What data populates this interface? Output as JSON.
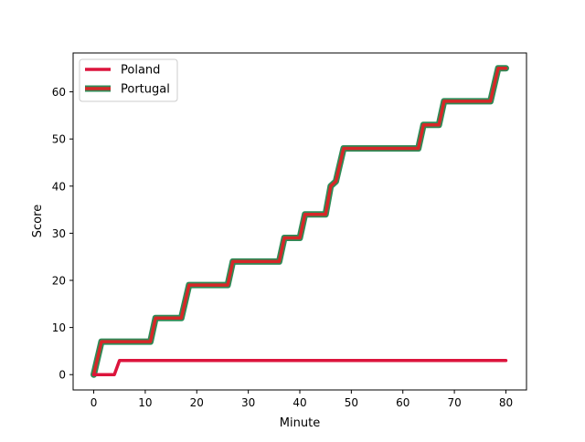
{
  "chart_data": {
    "type": "line",
    "title": "",
    "xlabel": "Minute",
    "ylabel": "Score",
    "xlim": [
      -4,
      84
    ],
    "ylim": [
      -3.25,
      68.25
    ],
    "xticks": [
      0,
      10,
      20,
      30,
      40,
      50,
      60,
      70,
      80
    ],
    "yticks": [
      0,
      10,
      20,
      30,
      40,
      50,
      60
    ],
    "grid": false,
    "legend_position": "upper-left",
    "series": [
      {
        "name": "Poland",
        "color": "#dc143c",
        "outline": null,
        "x": [
          0,
          1,
          4,
          5,
          80
        ],
        "y": [
          0,
          0,
          0,
          3,
          3
        ]
      },
      {
        "name": "Portugal",
        "color": "#d62728",
        "outline": "#2e8b57",
        "x": [
          0,
          1.5,
          11,
          12,
          17,
          18.5,
          26,
          27,
          36,
          37,
          40,
          41,
          45,
          46,
          47,
          48.5,
          63,
          64,
          67,
          68,
          77,
          78.5,
          80
        ],
        "y": [
          0,
          7,
          7,
          12,
          12,
          19,
          19,
          24,
          24,
          29,
          29,
          34,
          34,
          40,
          41,
          48,
          48,
          53,
          53,
          58,
          58,
          65,
          65
        ]
      }
    ]
  }
}
